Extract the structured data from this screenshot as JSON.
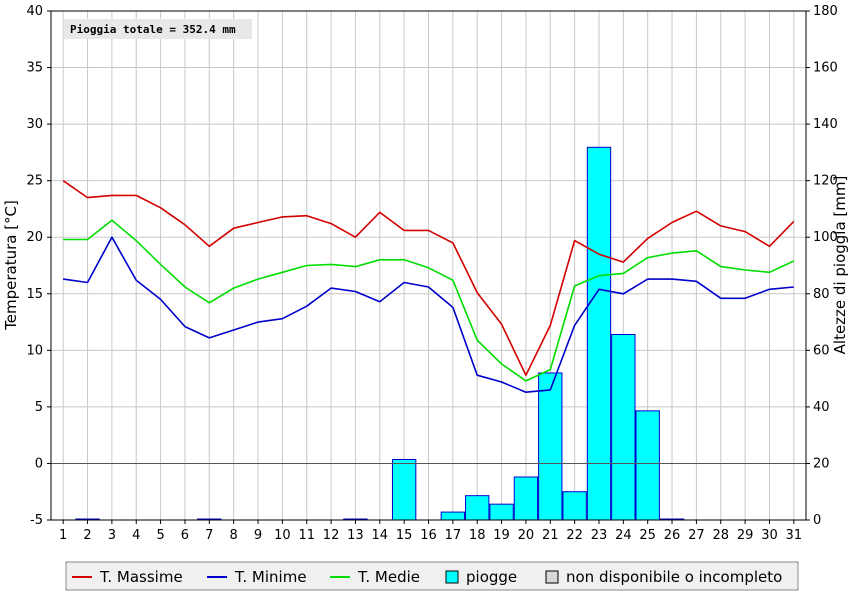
{
  "chart_data": {
    "type": "bar+line",
    "annotation": "Pioggia totale = 352.4 mm",
    "ylabel_left": "Temperatura [°C]",
    "ylabel_right": "Altezze di pioggia [mm]",
    "ylim_left": [
      -5,
      40
    ],
    "ylim_right": [
      0,
      180
    ],
    "y_ticks_left": [
      -5,
      0,
      5,
      10,
      15,
      20,
      25,
      30,
      35,
      40
    ],
    "y_ticks_right": [
      0,
      20,
      40,
      60,
      80,
      100,
      120,
      140,
      160,
      180
    ],
    "categories": [
      "1",
      "2",
      "3",
      "4",
      "5",
      "6",
      "7",
      "8",
      "9",
      "10",
      "11",
      "12",
      "13",
      "14",
      "15",
      "16",
      "17",
      "18",
      "19",
      "20",
      "21",
      "22",
      "23",
      "24",
      "25",
      "26",
      "27",
      "28",
      "29",
      "30",
      "31"
    ],
    "grid": true,
    "legend_position": "bottom",
    "series": [
      {
        "name": "T. Massime",
        "type": "line",
        "axis": "left",
        "color": "#d40000",
        "values": [
          25.0,
          23.5,
          23.7,
          23.7,
          22.6,
          21.1,
          19.2,
          20.8,
          21.3,
          21.8,
          21.9,
          21.2,
          20.0,
          22.2,
          20.6,
          20.6,
          19.5,
          15.1,
          12.3,
          7.8,
          12.2,
          19.7,
          18.5,
          17.8,
          19.9,
          21.3,
          22.3,
          21.0,
          20.5,
          19.2,
          21.4
        ]
      },
      {
        "name": "T. Minime",
        "type": "line",
        "axis": "left",
        "color": "#0000cc",
        "values": [
          16.3,
          16.0,
          20.0,
          16.2,
          14.5,
          12.1,
          11.1,
          11.8,
          12.5,
          12.8,
          13.9,
          15.5,
          15.2,
          14.3,
          16.0,
          15.6,
          13.8,
          7.8,
          7.2,
          6.3,
          6.5,
          12.2,
          15.4,
          15.0,
          16.3,
          16.3,
          16.1,
          14.6,
          14.6,
          15.4,
          15.6
        ]
      },
      {
        "name": "T. Medie",
        "type": "line",
        "axis": "left",
        "color": "#00dd00",
        "values": [
          19.8,
          19.8,
          21.5,
          19.7,
          17.6,
          15.6,
          14.2,
          15.5,
          16.3,
          16.9,
          17.5,
          17.6,
          17.4,
          18.0,
          18.0,
          17.3,
          16.2,
          10.9,
          8.8,
          7.3,
          8.3,
          15.7,
          16.6,
          16.8,
          18.2,
          18.6,
          18.8,
          17.4,
          17.1,
          16.9,
          17.9
        ]
      },
      {
        "name": "piogge",
        "type": "bar",
        "axis": "right",
        "color": "#00ffff",
        "border": "#0000cc",
        "values": [
          0,
          0.2,
          0,
          0,
          0,
          0,
          0.2,
          0,
          0,
          0,
          0,
          0,
          0.2,
          0,
          21.4,
          0,
          2.8,
          8.6,
          5.6,
          15.2,
          52.0,
          10.0,
          131.8,
          65.6,
          38.6,
          0.2,
          0,
          0,
          0,
          0,
          0
        ]
      }
    ],
    "legend": [
      {
        "label": "T. Massime",
        "symbol": "line",
        "color": "#d40000"
      },
      {
        "label": "T. Minime",
        "symbol": "line",
        "color": "#0000cc"
      },
      {
        "label": "T. Medie",
        "symbol": "line",
        "color": "#00dd00"
      },
      {
        "label": "piogge",
        "symbol": "box",
        "color": "#00ffff"
      },
      {
        "label": "non disponibile o incompleto",
        "symbol": "box",
        "color": "#d8d8d8"
      }
    ]
  }
}
